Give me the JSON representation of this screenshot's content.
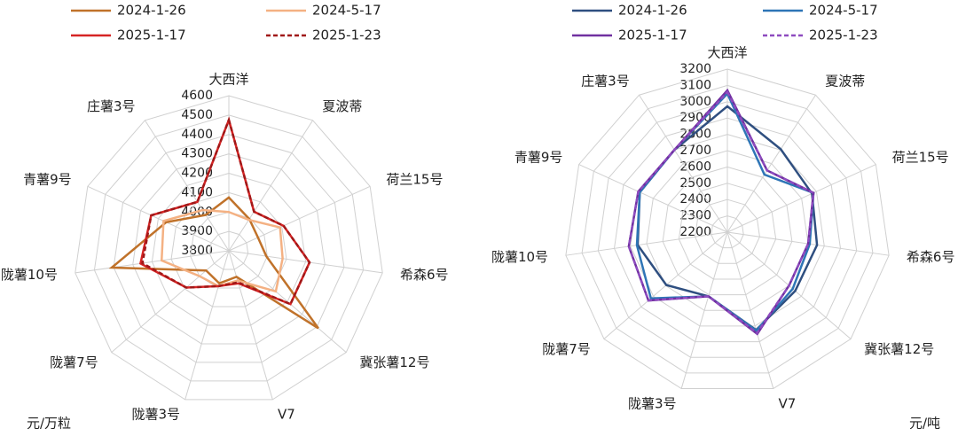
{
  "chart_data": [
    {
      "type": "radar",
      "unit": "元/万粒",
      "categories": [
        "大西洋",
        "夏波蒂",
        "荷兰15号",
        "希森6号",
        "冀张薯12号",
        "V7",
        "陇薯3号",
        "陇薯7号",
        "陇薯10号",
        "青薯9号",
        "庄薯3号"
      ],
      "rlim": [
        3800,
        4600
      ],
      "rticks": [
        3800,
        3900,
        4000,
        4100,
        4200,
        4300,
        4400,
        4500,
        4600
      ],
      "series": [
        {
          "name": "2024-1-26",
          "color": "#c0722a",
          "dash": false,
          "values": [
            4075,
            3995,
            3965,
            3995,
            4410,
            3940,
            3975,
            3955,
            4410,
            4155,
            4020
          ]
        },
        {
          "name": "2024-5-17",
          "color": "#f4b183",
          "dash": false,
          "values": [
            4000,
            3990,
            4090,
            4080,
            4120,
            3960,
            3990,
            4000,
            4150,
            4170,
            4050
          ]
        },
        {
          "name": "2025-1-17",
          "color": "#d62424",
          "dash": false,
          "values": [
            4475,
            4040,
            4110,
            4220,
            4220,
            3975,
            3990,
            4090,
            4260,
            4240,
            4100
          ]
        },
        {
          "name": "2025-1-23",
          "color": "#a01818",
          "dash": true,
          "values": [
            4475,
            4040,
            4110,
            4220,
            4220,
            3970,
            3990,
            4090,
            4250,
            4240,
            4100
          ]
        }
      ]
    },
    {
      "type": "radar",
      "unit": "元/吨",
      "categories": [
        "大西洋",
        "夏波蒂",
        "荷兰15号",
        "希森6号",
        "冀张薯12号",
        "V7",
        "陇薯3号",
        "陇薯7号",
        "陇薯10号",
        "青薯9号",
        "庄薯3号"
      ],
      "rlim": [
        2200,
        3200
      ],
      "rticks": [
        2200,
        2300,
        2400,
        2500,
        2600,
        2700,
        2800,
        2900,
        3000,
        3100,
        3200
      ],
      "series": [
        {
          "name": "2024-1-26",
          "color": "#2f4f80",
          "dash": false,
          "values": [
            2972,
            2805,
            2770,
            2755,
            2750,
            2825,
            2610,
            2695,
            2755,
            2790,
            2800
          ]
        },
        {
          "name": "2024-5-17",
          "color": "#2e75b6",
          "dash": false,
          "values": [
            3050,
            2620,
            2780,
            2710,
            2730,
            2830,
            2610,
            2820,
            2760,
            2790,
            2800
          ]
        },
        {
          "name": "2025-1-17",
          "color": "#7030a0",
          "dash": false,
          "values": [
            3070,
            2650,
            2780,
            2700,
            2700,
            2850,
            2610,
            2840,
            2810,
            2800,
            2800
          ]
        },
        {
          "name": "2025-1-23",
          "color": "#8e4bbf",
          "dash": true,
          "values": [
            3060,
            2650,
            2780,
            2700,
            2700,
            2845,
            2610,
            2840,
            2810,
            2800,
            2800
          ]
        }
      ]
    }
  ]
}
